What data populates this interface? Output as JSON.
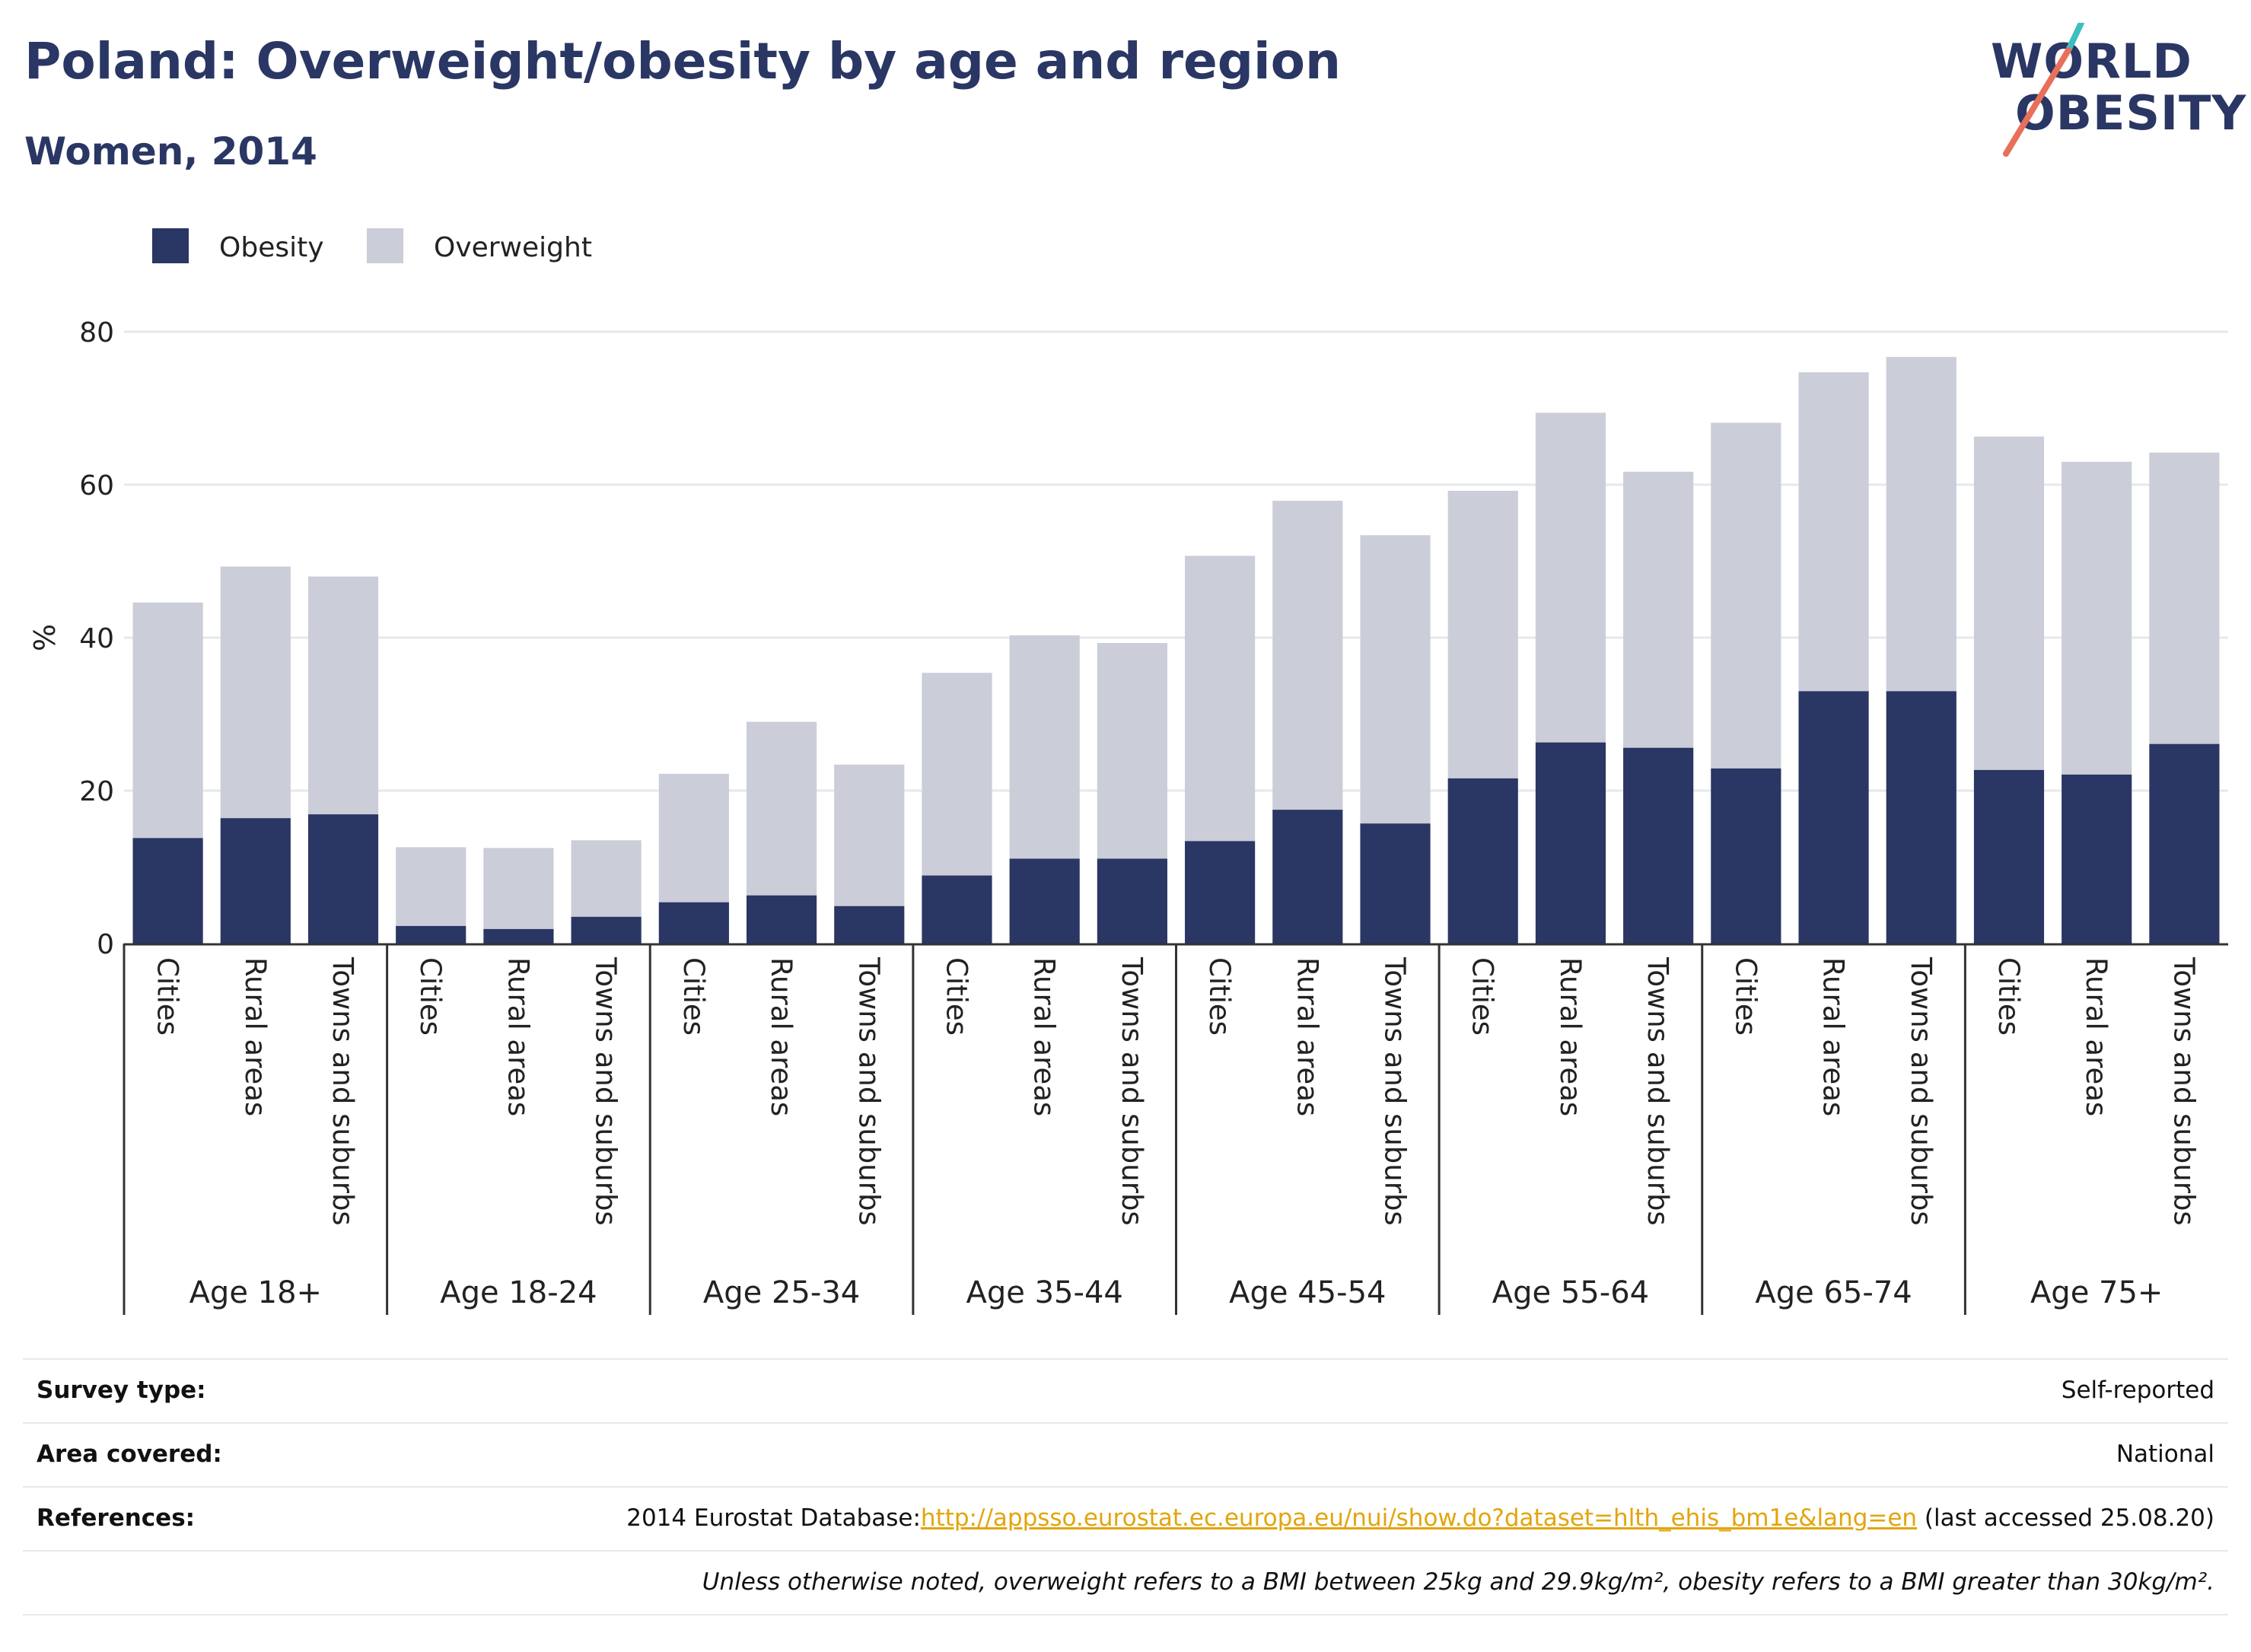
{
  "header": {
    "title": "Poland: Overweight/obesity by age and region",
    "subtitle": "Women, 2014"
  },
  "logo": {
    "line1": "WORLD",
    "line2": "OBESITY"
  },
  "colors": {
    "obesity": "#2a3663",
    "overweight": "#cbcdd8",
    "axis": "#333333",
    "grid": "#e6e8ee",
    "link": "#e2a50c"
  },
  "chart_data": {
    "type": "bar",
    "stacked": true,
    "ylabel": "%",
    "ylim": [
      0,
      80
    ],
    "yticks": [
      0,
      20,
      40,
      60,
      80
    ],
    "grid": true,
    "legend_position": "top-left",
    "groups": [
      {
        "label": "Age 18+",
        "categories": [
          "Cities",
          "Rural areas",
          "Towns and suburbs"
        ]
      },
      {
        "label": "Age 18-24",
        "categories": [
          "Cities",
          "Rural areas",
          "Towns and suburbs"
        ]
      },
      {
        "label": "Age 25-34",
        "categories": [
          "Cities",
          "Rural areas",
          "Towns and suburbs"
        ]
      },
      {
        "label": "Age 35-44",
        "categories": [
          "Cities",
          "Rural areas",
          "Towns and suburbs"
        ]
      },
      {
        "label": "Age 45-54",
        "categories": [
          "Cities",
          "Rural areas",
          "Towns and suburbs"
        ]
      },
      {
        "label": "Age 55-64",
        "categories": [
          "Cities",
          "Rural areas",
          "Towns and suburbs"
        ]
      },
      {
        "label": "Age 65-74",
        "categories": [
          "Cities",
          "Rural areas",
          "Towns and suburbs"
        ]
      },
      {
        "label": "Age 75+",
        "categories": [
          "Cities",
          "Rural areas",
          "Towns and suburbs"
        ]
      }
    ],
    "series": [
      {
        "name": "Obesity",
        "values": [
          13.8,
          16.4,
          16.9,
          2.3,
          1.9,
          3.5,
          5.4,
          6.3,
          4.9,
          8.9,
          11.1,
          11.1,
          13.4,
          17.5,
          15.7,
          21.6,
          26.3,
          25.6,
          22.9,
          33.0,
          33.0,
          22.7,
          22.1,
          26.1
        ]
      },
      {
        "name": "Overweight",
        "values": [
          30.8,
          32.9,
          31.1,
          10.3,
          10.6,
          10.0,
          16.8,
          22.7,
          18.5,
          26.5,
          29.2,
          28.2,
          37.3,
          40.4,
          37.7,
          37.6,
          43.1,
          36.1,
          45.2,
          41.7,
          43.7,
          43.6,
          40.9,
          38.1
        ]
      }
    ]
  },
  "footer": {
    "survey_type_label": "Survey type:",
    "survey_type_value": "Self-reported",
    "area_label": "Area covered:",
    "area_value": "National",
    "references_label": "References:",
    "references_prefix": "2014 Eurostat Database:",
    "references_link": "http://appsso.eurostat.ec.europa.eu/nui/show.do?dataset=hlth_ehis_bm1e&lang=en",
    "references_suffix": " (last accessed 25.08.20)",
    "note": "Unless otherwise noted, overweight refers to a BMI between 25kg and 29.9kg/m², obesity refers to a BMI greater than 30kg/m²."
  }
}
